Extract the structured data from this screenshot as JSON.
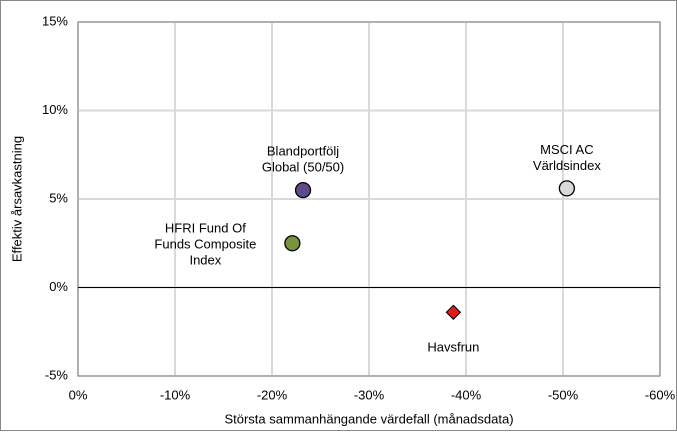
{
  "chart_data": {
    "type": "scatter",
    "xlabel": "Största sammanhängande värdefall (månadsdata)",
    "ylabel": "Effektiv årsavkastning",
    "xlim": [
      0,
      -60
    ],
    "xticks": [
      {
        "value": 0,
        "label": "0%"
      },
      {
        "value": -10,
        "label": "-10%"
      },
      {
        "value": -20,
        "label": "-20%"
      },
      {
        "value": -30,
        "label": "-30%"
      },
      {
        "value": -40,
        "label": "-40%"
      },
      {
        "value": -50,
        "label": "-50%"
      },
      {
        "value": -60,
        "label": "-60%"
      }
    ],
    "ylim": [
      -5,
      15
    ],
    "yticks": [
      {
        "value": -5,
        "label": "-5%"
      },
      {
        "value": 0,
        "label": "0%"
      },
      {
        "value": 5,
        "label": "5%"
      },
      {
        "value": 10,
        "label": "10%"
      },
      {
        "value": 15,
        "label": "15%"
      }
    ],
    "grid": true,
    "series": [
      {
        "label": [
          "Blandportfölj",
          "Global (50/50)"
        ],
        "color": "#5f4b8b",
        "marker": "circle",
        "label_position": "above",
        "x": -23.2,
        "y": 5.5
      },
      {
        "label": [
          "HFRI Fund Of",
          "Funds Composite",
          "Index"
        ],
        "color": "#77933c",
        "marker": "circle",
        "label_position": "left",
        "x": -22.1,
        "y": 2.5
      },
      {
        "label": [
          "MSCI AC",
          "Världsindex"
        ],
        "color": "#d9d9d9",
        "marker": "circle",
        "label_position": "above",
        "x": -50.4,
        "y": 5.6
      },
      {
        "label": [
          "Havsfrun"
        ],
        "color": "#e31a1c",
        "marker": "diamond",
        "label_position": "below",
        "x": -38.7,
        "y": -1.4
      }
    ]
  }
}
